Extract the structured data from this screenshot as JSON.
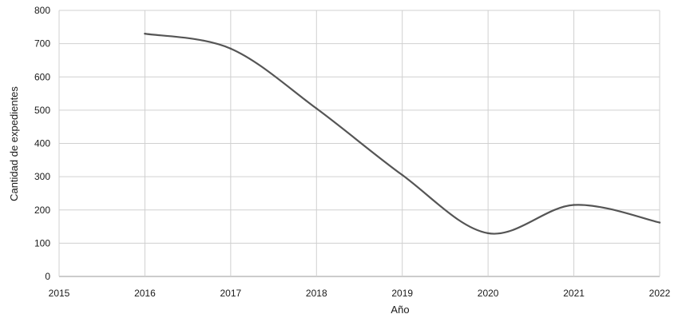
{
  "chart_data": {
    "type": "line",
    "title": "",
    "xlabel": "Año",
    "ylabel": "Cantidad de expedientes",
    "xlim": [
      2015,
      2022
    ],
    "ylim": [
      0,
      800
    ],
    "x_ticks": [
      "2015",
      "2016",
      "2017",
      "2018",
      "2019",
      "2020",
      "2021",
      "2022"
    ],
    "y_ticks": [
      "0",
      "100",
      "200",
      "300",
      "400",
      "500",
      "600",
      "700",
      "800"
    ],
    "grid": true,
    "smooth": true,
    "series": [
      {
        "x": [
          2016,
          2017,
          2018,
          2019,
          2020,
          2021,
          2022
        ],
        "values": [
          730,
          685,
          505,
          305,
          130,
          215,
          162
        ],
        "color": "#555555"
      }
    ]
  }
}
